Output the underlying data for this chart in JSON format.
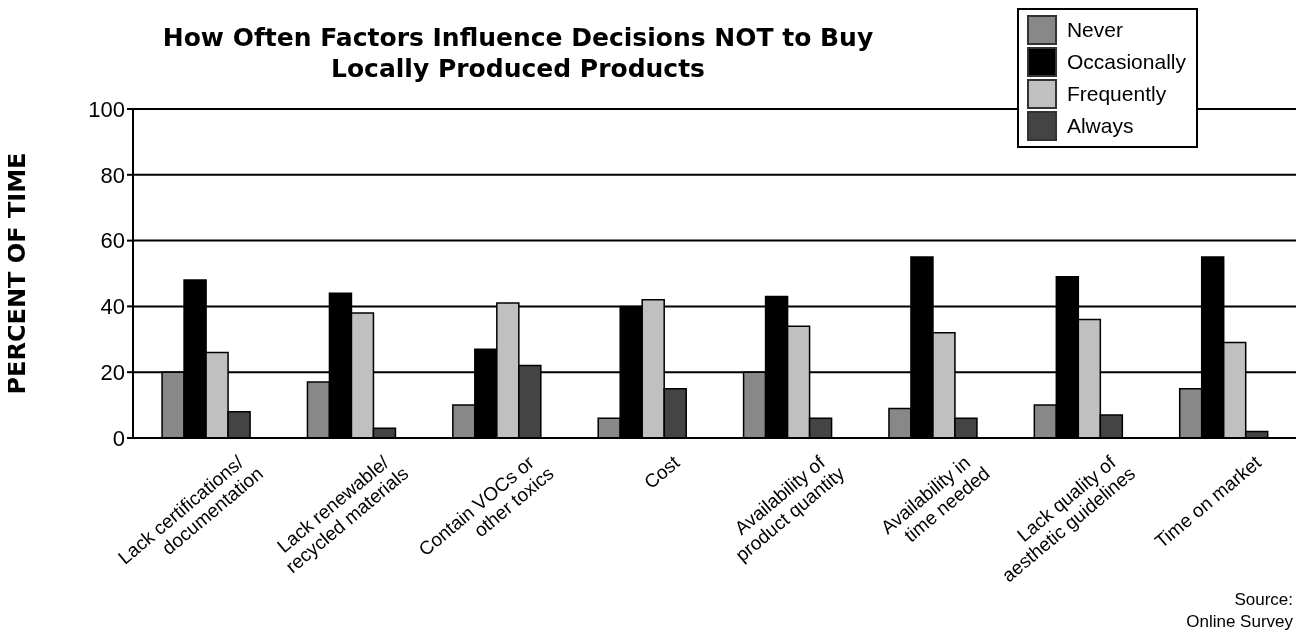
{
  "chart_data": {
    "type": "bar",
    "title": "How Often Factors Influence Decisions NOT to Buy Locally Produced Products",
    "ylabel": "PERCENT OF TIME",
    "categories": [
      "Lack certifications/\ndocumentation",
      "Lack renewable/\nrecycled materials",
      "Contain VOCs or\nother toxics",
      "Cost",
      "Availability of\nproduct quantity",
      "Availability in\ntime needed",
      "Lack quality of\naesthetic guidelines",
      "Time on market"
    ],
    "series": [
      {
        "name": "Never",
        "color": "#888888",
        "values": [
          20,
          17,
          10,
          6,
          20,
          9,
          10,
          15
        ]
      },
      {
        "name": "Occasionally",
        "color": "#000000",
        "values": [
          48,
          44,
          27,
          40,
          43,
          55,
          49,
          55
        ]
      },
      {
        "name": "Frequently",
        "color": "#c0c0c0",
        "values": [
          26,
          38,
          41,
          42,
          34,
          32,
          36,
          29
        ]
      },
      {
        "name": "Always",
        "color": "#444444",
        "values": [
          8,
          3,
          22,
          15,
          6,
          6,
          7,
          2
        ]
      }
    ],
    "ylim": [
      0,
      100
    ],
    "yticks": [
      0,
      20,
      40,
      60,
      80,
      100
    ],
    "grid": "y",
    "legend": "top right",
    "annotations": [
      "Source:\nOnline Survey"
    ]
  }
}
